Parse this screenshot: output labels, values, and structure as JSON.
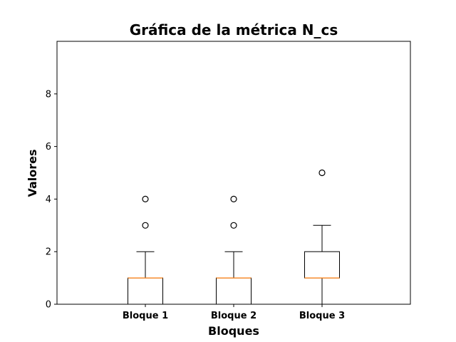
{
  "chart_data": {
    "type": "boxplot",
    "title": "Gráfica de la métrica N_cs",
    "xlabel": "Bloques",
    "ylabel": "Valores",
    "ylim": [
      0,
      10
    ],
    "yticks": [
      0,
      2,
      4,
      6,
      8
    ],
    "grid": false,
    "categories": [
      "Bloque 1",
      "Bloque 2",
      "Bloque 3"
    ],
    "boxes": [
      {
        "category": "Bloque 1",
        "whisker_low": 0,
        "q1": 0,
        "median": 1,
        "q3": 1,
        "whisker_high": 2,
        "outliers": [
          3,
          4
        ]
      },
      {
        "category": "Bloque 2",
        "whisker_low": 0,
        "q1": 0,
        "median": 1,
        "q3": 1,
        "whisker_high": 2,
        "outliers": [
          3,
          4
        ]
      },
      {
        "category": "Bloque 3",
        "whisker_low": 0,
        "q1": 1,
        "median": 1,
        "q3": 2,
        "whisker_high": 3,
        "outliers": [
          5
        ]
      }
    ],
    "colors": {
      "box": "#000000",
      "median": "#ff7f0e",
      "outlier": "#000000"
    }
  }
}
